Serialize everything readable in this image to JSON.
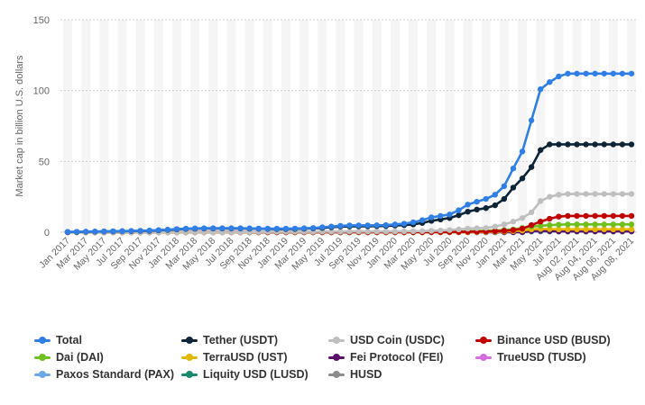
{
  "chart_data": {
    "type": "line",
    "ylabel": "Market cap in billion U.S. dollars",
    "xlabel": "",
    "ylim": [
      0,
      150
    ],
    "yticks": [
      0,
      50,
      100,
      150
    ],
    "grid": true,
    "legend_position": "bottom",
    "x": [
      "Jan 2017",
      "Feb 2017",
      "Mar 2017",
      "Apr 2017",
      "May 2017",
      "Jun 2017",
      "Jul 2017",
      "Aug 2017",
      "Sep 2017",
      "Oct 2017",
      "Nov 2017",
      "Dec 2017",
      "Jan 2018",
      "Feb 2018",
      "Mar 2018",
      "Apr 2018",
      "May 2018",
      "Jun 2018",
      "Jul 2018",
      "Aug 2018",
      "Sep 2018",
      "Oct 2018",
      "Nov 2018",
      "Dec 2018",
      "Jan 2019",
      "Feb 2019",
      "Mar 2019",
      "Apr 2019",
      "May 2019",
      "Jun 2019",
      "Jul 2019",
      "Aug 2019",
      "Sep 2019",
      "Oct 2019",
      "Nov 2019",
      "Dec 2019",
      "Jan 2020",
      "Feb 2020",
      "Mar 2020",
      "Apr 2020",
      "May 2020",
      "Jun 2020",
      "Jul 2020",
      "Aug 2020",
      "Sep 2020",
      "Oct 2020",
      "Nov 2020",
      "Dec 2020",
      "Jan 2021",
      "Feb 2021",
      "Mar 2021",
      "Apr 2021",
      "May 2021",
      "Jun 2021",
      "Jul 2021",
      "Aug 01, 2021",
      "Aug 02, 2021",
      "Aug 03, 2021",
      "Aug 04, 2021",
      "Aug 05, 2021",
      "Aug 06, 2021",
      "Aug 07, 2021",
      "Aug 08, 2021"
    ],
    "x_tick_labels": [
      "Jan 2017",
      "Mar 2017",
      "May 2017",
      "Jul 2017",
      "Sep 2017",
      "Nov 2017",
      "Jan 2018",
      "Mar 2018",
      "May 2018",
      "Jul 2018",
      "Sep 2018",
      "Nov 2018",
      "Jan 2019",
      "Mar 2019",
      "May 2019",
      "Jul 2019",
      "Sep 2019",
      "Nov 2019",
      "Jan 2020",
      "Mar 2020",
      "May 2020",
      "Jul 2020",
      "Sep 2020",
      "Nov 2020",
      "Jan 2021",
      "Mar 2021",
      "May 2021",
      "Jul 2021",
      "Aug 02, 2021",
      "Aug 04, 2021",
      "Aug 06, 2021",
      "Aug 08, 2021"
    ],
    "series": [
      {
        "name": "Total",
        "color": "#2f7fe6",
        "values": [
          0.2,
          0.3,
          0.4,
          0.5,
          0.6,
          0.7,
          0.8,
          0.9,
          1.0,
          1.2,
          1.5,
          1.8,
          2.2,
          2.5,
          2.7,
          2.8,
          2.8,
          2.8,
          2.8,
          2.8,
          2.7,
          2.6,
          2.5,
          2.5,
          2.5,
          2.6,
          2.8,
          3.0,
          3.5,
          4.0,
          4.5,
          4.8,
          4.8,
          4.8,
          4.9,
          5.0,
          5.5,
          6.0,
          7.0,
          8.5,
          10.5,
          11.5,
          12.5,
          15.5,
          19.5,
          21.5,
          23.5,
          26.5,
          32.5,
          45,
          57,
          79,
          101,
          106,
          110,
          112,
          112,
          112,
          112,
          112,
          112,
          112,
          112
        ]
      },
      {
        "name": "Tether (USDT)",
        "color": "#0e2538",
        "values": [
          0.1,
          0.2,
          0.3,
          0.4,
          0.5,
          0.6,
          0.7,
          0.8,
          0.9,
          1.0,
          1.3,
          1.6,
          2.0,
          2.3,
          2.5,
          2.6,
          2.6,
          2.6,
          2.6,
          2.6,
          2.5,
          2.4,
          2.3,
          2.2,
          2.2,
          2.3,
          2.5,
          2.7,
          3.0,
          3.5,
          4.0,
          4.1,
          4.2,
          4.2,
          4.3,
          4.4,
          4.7,
          5.0,
          5.5,
          6.5,
          8.0,
          9.0,
          10.0,
          12.0,
          14.5,
          16.0,
          17.0,
          19.0,
          23.5,
          31.5,
          38.0,
          46.0,
          58.0,
          62.0,
          62.0,
          62.0,
          62.0,
          62.0,
          62.0,
          62.0,
          62.0,
          62.0,
          62.0
        ]
      },
      {
        "name": "USD Coin (USDC)",
        "color": "#bfbfbf",
        "values": [
          0,
          0,
          0,
          0,
          0,
          0,
          0,
          0,
          0,
          0,
          0,
          0,
          0,
          0,
          0,
          0,
          0,
          0,
          0,
          0,
          0.1,
          0.2,
          0.3,
          0.3,
          0.3,
          0.3,
          0.3,
          0.3,
          0.4,
          0.4,
          0.4,
          0.5,
          0.5,
          0.5,
          0.5,
          0.5,
          0.5,
          0.6,
          0.7,
          0.8,
          1.0,
          1.2,
          1.5,
          2.0,
          2.5,
          2.8,
          3.0,
          4.0,
          5.5,
          7.5,
          10.0,
          14.0,
          22.0,
          25.0,
          26.5,
          27.0,
          27.0,
          27.0,
          27.0,
          27.0,
          27.0,
          27.0,
          27.0
        ]
      },
      {
        "name": "Binance USD (BUSD)",
        "color": "#c00000",
        "values": [
          0,
          0,
          0,
          0,
          0,
          0,
          0,
          0,
          0,
          0,
          0,
          0,
          0,
          0,
          0,
          0,
          0,
          0,
          0,
          0,
          0,
          0,
          0,
          0,
          0,
          0,
          0,
          0,
          0,
          0,
          0,
          0,
          0,
          0,
          0,
          0,
          0,
          0,
          0,
          0,
          0.1,
          0.1,
          0.2,
          0.2,
          0.3,
          0.4,
          0.5,
          0.7,
          1.0,
          1.5,
          2.5,
          5.0,
          7.5,
          9.5,
          11.0,
          11.5,
          11.5,
          11.5,
          11.5,
          11.5,
          11.5,
          11.5,
          11.5
        ]
      },
      {
        "name": "Dai (DAI)",
        "color": "#6fbf1f",
        "values": [
          0,
          0,
          0,
          0,
          0,
          0,
          0,
          0,
          0,
          0,
          0,
          0,
          0,
          0,
          0,
          0,
          0,
          0,
          0,
          0,
          0,
          0,
          0,
          0,
          0,
          0,
          0,
          0,
          0,
          0,
          0,
          0,
          0,
          0,
          0,
          0,
          0,
          0,
          0,
          0,
          0.1,
          0.1,
          0.2,
          0.4,
          0.7,
          0.9,
          1.1,
          1.2,
          1.5,
          2.0,
          3.0,
          4.0,
          4.5,
          5.0,
          5.3,
          5.5,
          5.5,
          5.5,
          5.5,
          5.5,
          5.5,
          5.5,
          5.5
        ]
      },
      {
        "name": "TerraUSD (UST)",
        "color": "#e5b700",
        "values": [
          0,
          0,
          0,
          0,
          0,
          0,
          0,
          0,
          0,
          0,
          0,
          0,
          0,
          0,
          0,
          0,
          0,
          0,
          0,
          0,
          0,
          0,
          0,
          0,
          0,
          0,
          0,
          0,
          0,
          0,
          0,
          0,
          0,
          0,
          0,
          0,
          0,
          0,
          0,
          0,
          0,
          0,
          0,
          0,
          0,
          0.1,
          0.2,
          0.3,
          0.5,
          0.8,
          1.2,
          2.0,
          2.3,
          2.2,
          2.0,
          2.0,
          2.0,
          2.0,
          2.0,
          2.0,
          2.0,
          2.0,
          2.0
        ]
      },
      {
        "name": "Fei Protocol (FEI)",
        "color": "#5a0f6b",
        "values": [
          0,
          0,
          0,
          0,
          0,
          0,
          0,
          0,
          0,
          0,
          0,
          0,
          0,
          0,
          0,
          0,
          0,
          0,
          0,
          0,
          0,
          0,
          0,
          0,
          0,
          0,
          0,
          0,
          0,
          0,
          0,
          0,
          0,
          0,
          0,
          0,
          0,
          0,
          0,
          0,
          0,
          0,
          0,
          0,
          0,
          0,
          0,
          0,
          0,
          0,
          0,
          0.8,
          1.0,
          0.8,
          0.6,
          0.6,
          0.6,
          0.6,
          0.6,
          0.6,
          0.6,
          0.6,
          0.6
        ]
      },
      {
        "name": "TrueUSD (TUSD)",
        "color": "#d76be0",
        "values": [
          0,
          0,
          0,
          0,
          0,
          0,
          0,
          0,
          0,
          0,
          0,
          0.1,
          0.1,
          0.1,
          0.2,
          0.2,
          0.2,
          0.2,
          0.2,
          0.2,
          0.2,
          0.2,
          0.2,
          0.2,
          0.2,
          0.2,
          0.2,
          0.2,
          0.2,
          0.2,
          0.2,
          0.2,
          0.2,
          0.2,
          0.2,
          0.2,
          0.2,
          0.2,
          0.2,
          0.2,
          0.2,
          0.2,
          0.3,
          0.3,
          0.4,
          0.4,
          0.4,
          0.5,
          0.5,
          0.6,
          0.7,
          0.9,
          1.2,
          1.3,
          1.3,
          1.3,
          1.3,
          1.3,
          1.3,
          1.3,
          1.3,
          1.3,
          1.3
        ]
      },
      {
        "name": "Paxos Standard (PAX)",
        "color": "#6fa8e8",
        "values": [
          0,
          0,
          0,
          0,
          0,
          0,
          0,
          0,
          0,
          0,
          0,
          0,
          0,
          0,
          0,
          0,
          0,
          0,
          0,
          0,
          0.1,
          0.1,
          0.2,
          0.2,
          0.2,
          0.2,
          0.2,
          0.2,
          0.2,
          0.2,
          0.2,
          0.2,
          0.2,
          0.2,
          0.2,
          0.2,
          0.2,
          0.2,
          0.2,
          0.2,
          0.2,
          0.2,
          0.2,
          0.3,
          0.3,
          0.3,
          0.3,
          0.3,
          0.4,
          0.5,
          0.6,
          0.7,
          0.8,
          0.9,
          0.9,
          0.9,
          0.9,
          0.9,
          0.9,
          0.9,
          0.9,
          0.9,
          0.9
        ]
      },
      {
        "name": "Liquity USD (LUSD)",
        "color": "#1a8a6e",
        "values": [
          0,
          0,
          0,
          0,
          0,
          0,
          0,
          0,
          0,
          0,
          0,
          0,
          0,
          0,
          0,
          0,
          0,
          0,
          0,
          0,
          0,
          0,
          0,
          0,
          0,
          0,
          0,
          0,
          0,
          0,
          0,
          0,
          0,
          0,
          0,
          0,
          0,
          0,
          0,
          0,
          0,
          0,
          0,
          0,
          0,
          0,
          0,
          0,
          0,
          0,
          0,
          0.5,
          0.6,
          0.6,
          0.6,
          0.6,
          0.6,
          0.6,
          0.6,
          0.6,
          0.6,
          0.6,
          0.6
        ]
      },
      {
        "name": "HUSD",
        "color": "#8c8c8c",
        "values": [
          0,
          0,
          0,
          0,
          0,
          0,
          0,
          0,
          0,
          0,
          0,
          0,
          0,
          0,
          0,
          0,
          0,
          0,
          0,
          0,
          0,
          0,
          0,
          0,
          0,
          0,
          0,
          0,
          0,
          0,
          0,
          0,
          0.1,
          0.1,
          0.1,
          0.1,
          0.1,
          0.1,
          0.1,
          0.1,
          0.1,
          0.1,
          0.1,
          0.2,
          0.2,
          0.2,
          0.3,
          0.3,
          0.4,
          0.5,
          0.5,
          0.6,
          0.6,
          0.6,
          0.6,
          0.6,
          0.6,
          0.6,
          0.6,
          0.6,
          0.6,
          0.6,
          0.6
        ]
      }
    ]
  }
}
